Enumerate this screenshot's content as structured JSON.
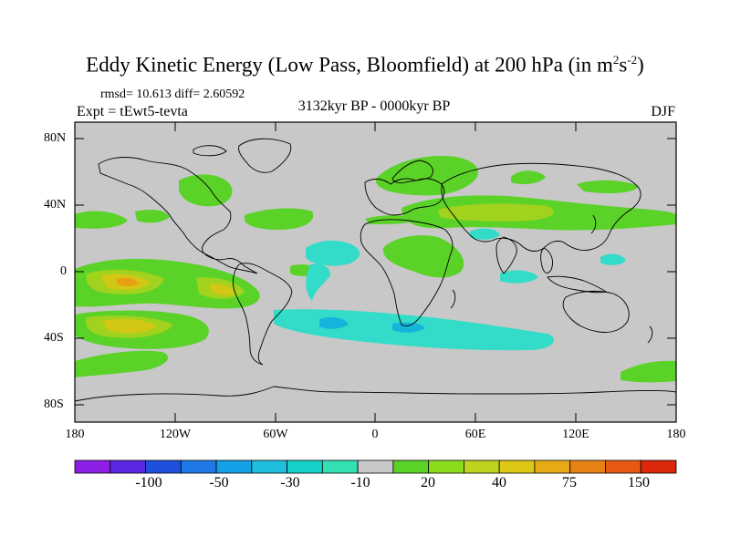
{
  "title_main": "Eddy Kinetic Energy (Low Pass, Bloomfield) at 200 hPa (in m",
  "title_sup1": "2",
  "title_mid": "s",
  "title_sup2": "-2",
  "title_end": ")",
  "stats": "rmsd= 10.613 diff= 2.60592",
  "experiment": "Expt = tEwt5-tevta",
  "period": "3132kyr BP - 0000kyr BP",
  "season": "DJF",
  "lat_labels": [
    "80N",
    "40N",
    "0",
    "40S",
    "80S"
  ],
  "lon_labels": [
    "180",
    "120W",
    "60W",
    "0",
    "60E",
    "120E",
    "180"
  ],
  "colorbar": {
    "colors": [
      "#8c1ee6",
      "#5a28e0",
      "#1e50dc",
      "#1e78e6",
      "#14a0e6",
      "#1ebedc",
      "#14d2c8",
      "#32e0b4",
      "#c8c8c8",
      "#5ad228",
      "#8cdc1e",
      "#bed21e",
      "#dcc814",
      "#e6aa14",
      "#e68214",
      "#e65a14",
      "#dc280a"
    ],
    "labels": [
      "-100",
      "-50",
      "-30",
      "-10",
      "20",
      "40",
      "75",
      "150"
    ]
  },
  "field_colors": {
    "background": "#c8c8c8",
    "green": "#5ad228",
    "yellowgreen": "#a0d21e",
    "yellow": "#d2c814",
    "orange": "#e6a014",
    "cyan": "#32dcc8",
    "blue": "#14b4dc",
    "coast": "#000000"
  }
}
